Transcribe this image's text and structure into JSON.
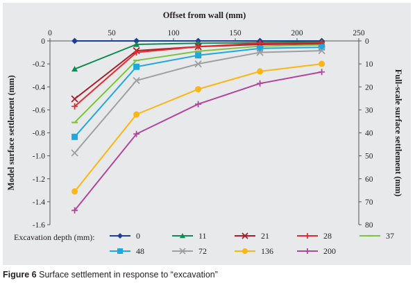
{
  "caption": {
    "label": "Figure 6",
    "text": "Surface settlement in response to “excavation”"
  },
  "chart_data": {
    "type": "line",
    "title": "",
    "xlabel": "Offset from wall (mm)",
    "ylabel": "Model surface settlement (mm)",
    "y2label": "Full-scale surface settlement (mm)",
    "x_axis_position": "top",
    "xlim": [
      0,
      250
    ],
    "ylim": [
      -1.6,
      0
    ],
    "y2lim": [
      80,
      0
    ],
    "xticks": [
      "0",
      "50",
      "100",
      "150",
      "200",
      "250"
    ],
    "yticks": [
      "0",
      "-0.2",
      "-0.4",
      "-0.6",
      "-0.8",
      "-1.0",
      "-1.2",
      "-1.4",
      "-1.6"
    ],
    "y2ticks": [
      "0",
      "10",
      "20",
      "30",
      "40",
      "50",
      "60",
      "70",
      "80"
    ],
    "grid": false,
    "legend_title": "Excavation depth (mm):",
    "legend_position": "bottom",
    "x": [
      20,
      70,
      120,
      170,
      220
    ],
    "series": [
      {
        "name": "0",
        "color": "#1b3f94",
        "marker": "diamond",
        "values": [
          0,
          0,
          0,
          0,
          0
        ]
      },
      {
        "name": "11",
        "color": "#0f8a55",
        "marker": "triangle",
        "values": [
          -0.245,
          -0.03,
          -0.02,
          -0.015,
          -0.01
        ]
      },
      {
        "name": "21",
        "color": "#a3202a",
        "marker": "x",
        "values": [
          -0.505,
          -0.085,
          -0.05,
          -0.03,
          -0.025
        ]
      },
      {
        "name": "28",
        "color": "#e42b2e",
        "marker": "plus",
        "values": [
          -0.57,
          -0.1,
          -0.05,
          -0.02,
          -0.015
        ]
      },
      {
        "name": "37",
        "color": "#7dc242",
        "marker": "dash",
        "values": [
          -0.71,
          -0.17,
          -0.09,
          -0.045,
          -0.035
        ]
      },
      {
        "name": "48",
        "color": "#1ea7e1",
        "marker": "square",
        "values": [
          -0.835,
          -0.225,
          -0.125,
          -0.065,
          -0.055
        ]
      },
      {
        "name": "72",
        "color": "#9d9fa2",
        "marker": "x",
        "values": [
          -0.975,
          -0.345,
          -0.2,
          -0.1,
          -0.085
        ]
      },
      {
        "name": "136",
        "color": "#fbb515",
        "marker": "circle",
        "values": [
          -1.31,
          -0.64,
          -0.42,
          -0.265,
          -0.2
        ]
      },
      {
        "name": "200",
        "color": "#b2459b",
        "marker": "plus",
        "values": [
          -1.475,
          -0.81,
          -0.55,
          -0.37,
          -0.27
        ]
      }
    ]
  }
}
